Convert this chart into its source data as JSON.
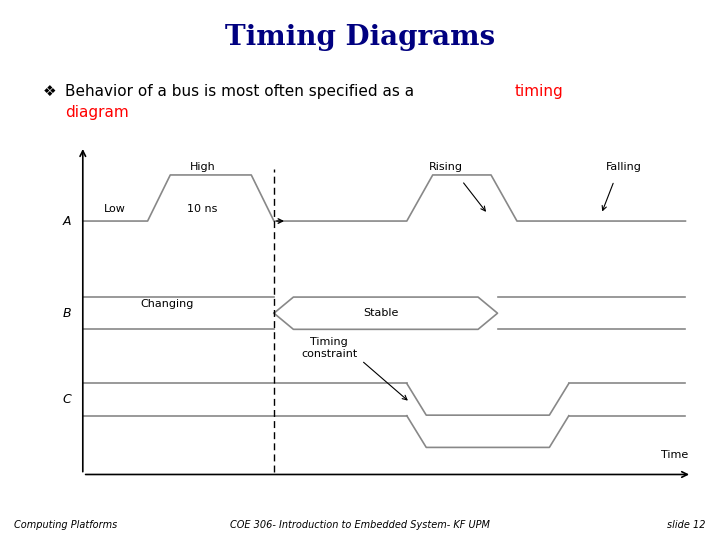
{
  "title": "Timing Diagrams",
  "title_bg": "#c0c0f0",
  "title_color": "#000080",
  "slide_bg": "#ffffff",
  "footer_bg": "#ffffcc",
  "footer_left": "Computing Platforms",
  "footer_center": "COE 306- Introduction to Embedded System- KF UPM",
  "footer_right": "slide 12",
  "bullet_black1": "Behavior of a bus is most often specified as a ",
  "bullet_red1": "timing",
  "bullet_red2": "diagram",
  "signal_color": "#888888",
  "signal_A_label": "A",
  "signal_B_label": "B",
  "signal_C_label": "C",
  "label_Low": "Low",
  "label_10ns": "10 ns",
  "label_High": "High",
  "label_Rising": "Rising",
  "label_Falling": "Falling",
  "label_Changing": "Changing",
  "label_Stable": "Stable",
  "label_TimingConstraint": "Timing\nconstraint",
  "label_Time": "Time"
}
